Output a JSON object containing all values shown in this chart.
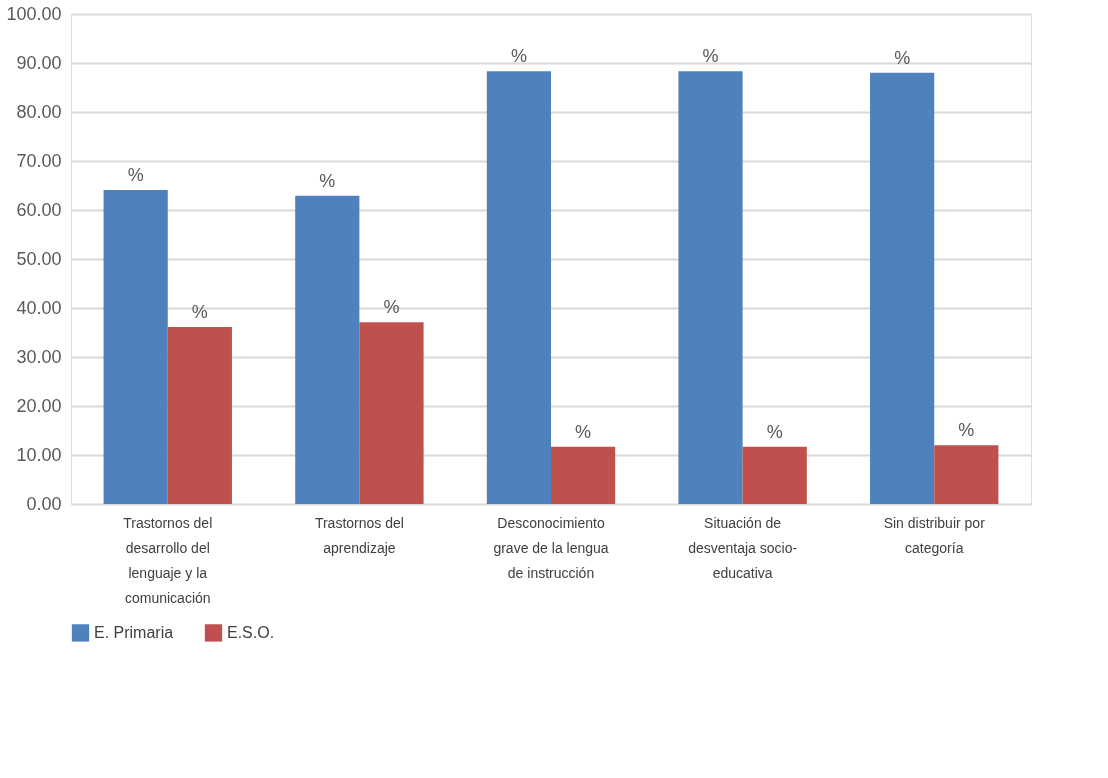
{
  "chart_data": {
    "type": "bar",
    "categories": [
      "Trastornos del desarrollo del lenguaje y la comunicación",
      "Trastornos del aprendizaje",
      "Desconocimiento grave de la lengua de instrucción",
      "Situación de desventaja socio-educativa",
      "Sin distribuir por categoría"
    ],
    "series": [
      {
        "name": "E. Primaria",
        "color": "#4f81bd",
        "values": [
          64.1,
          62.9,
          88.3,
          88.3,
          88.0
        ],
        "value_labels": [
          "%",
          "%",
          "%",
          "%",
          "%"
        ]
      },
      {
        "name": "E.S.O.",
        "color": "#c0504d",
        "values": [
          36.1,
          37.1,
          11.7,
          11.7,
          12.0
        ],
        "value_labels": [
          "%",
          "%",
          "%",
          "%",
          "%"
        ]
      }
    ],
    "ylim": [
      0,
      100
    ],
    "yticks": [
      {
        "value": 0,
        "label": "0.00"
      },
      {
        "value": 10,
        "label": "10.00"
      },
      {
        "value": 20,
        "label": "20.00"
      },
      {
        "value": 30,
        "label": "30.00"
      },
      {
        "value": 40,
        "label": "40.00"
      },
      {
        "value": 50,
        "label": "50.00"
      },
      {
        "value": 60,
        "label": "60.00"
      },
      {
        "value": 70,
        "label": "70.00"
      },
      {
        "value": 80,
        "label": "80.00"
      },
      {
        "value": 90,
        "label": "90.00"
      },
      {
        "value": 100,
        "label": "100.00"
      }
    ],
    "grid": "y",
    "legend": "bottom"
  }
}
